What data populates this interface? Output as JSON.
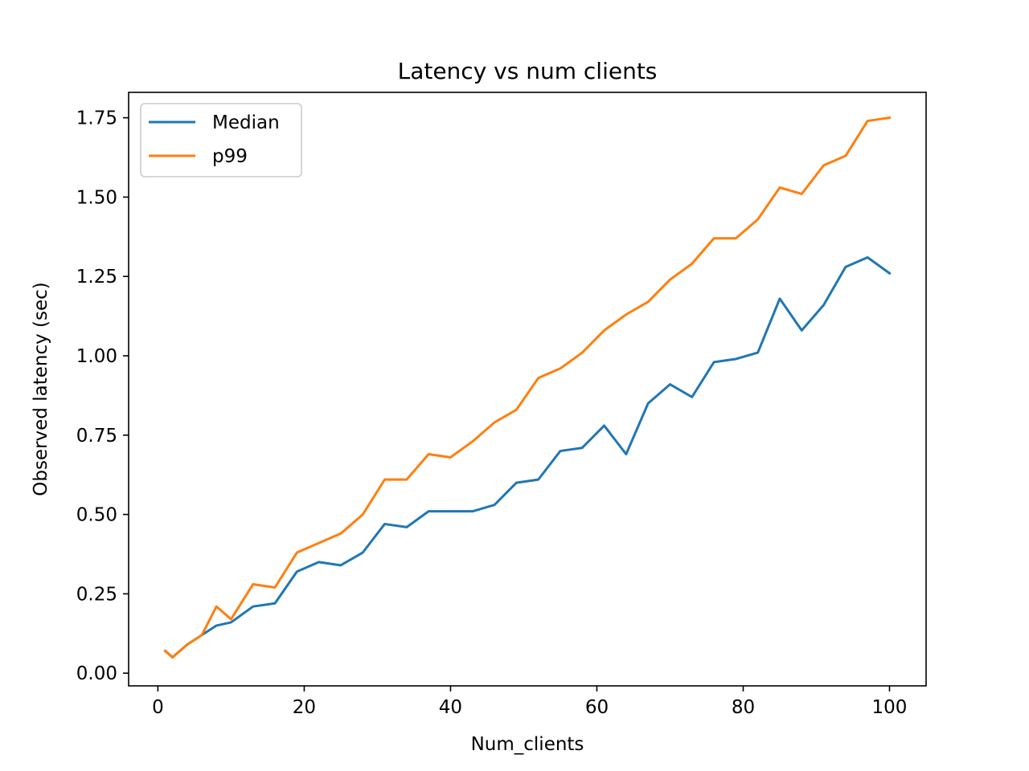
{
  "chart_data": {
    "type": "line",
    "title": "Latency vs num clients",
    "xlabel": "Num_clients",
    "ylabel": "Observed latency (sec)",
    "xlim": [
      -4,
      105
    ],
    "ylim": [
      -0.04,
      1.83
    ],
    "xticks": [
      0,
      20,
      40,
      60,
      80,
      100
    ],
    "xtick_labels": [
      "0",
      "20",
      "40",
      "60",
      "80",
      "100"
    ],
    "yticks": [
      0.0,
      0.25,
      0.5,
      0.75,
      1.0,
      1.25,
      1.5,
      1.75
    ],
    "ytick_labels": [
      "0.00",
      "0.25",
      "0.50",
      "0.75",
      "1.00",
      "1.25",
      "1.50",
      "1.75"
    ],
    "grid": false,
    "legend_position": "top-left",
    "x": [
      1,
      2,
      4,
      6,
      8,
      10,
      13,
      16,
      19,
      22,
      25,
      28,
      31,
      34,
      37,
      40,
      43,
      46,
      49,
      52,
      55,
      58,
      61,
      64,
      67,
      70,
      73,
      76,
      79,
      82,
      85,
      88,
      91,
      94,
      97,
      100
    ],
    "series": [
      {
        "name": "Median",
        "color": "#1f77b4",
        "values": [
          0.07,
          0.05,
          0.09,
          0.12,
          0.15,
          0.16,
          0.21,
          0.22,
          0.32,
          0.35,
          0.34,
          0.38,
          0.47,
          0.46,
          0.51,
          0.51,
          0.51,
          0.53,
          0.6,
          0.61,
          0.7,
          0.71,
          0.78,
          0.69,
          0.85,
          0.91,
          0.87,
          0.98,
          0.99,
          1.01,
          1.18,
          1.08,
          1.16,
          1.28,
          1.31,
          1.26
        ]
      },
      {
        "name": "p99",
        "color": "#ff7f0e",
        "values": [
          0.07,
          0.05,
          0.09,
          0.12,
          0.21,
          0.17,
          0.28,
          0.27,
          0.38,
          0.41,
          0.44,
          0.5,
          0.61,
          0.61,
          0.69,
          0.68,
          0.73,
          0.79,
          0.83,
          0.93,
          0.96,
          1.01,
          1.08,
          1.13,
          1.17,
          1.24,
          1.29,
          1.37,
          1.37,
          1.43,
          1.53,
          1.51,
          1.6,
          1.63,
          1.74,
          1.75
        ]
      }
    ]
  }
}
